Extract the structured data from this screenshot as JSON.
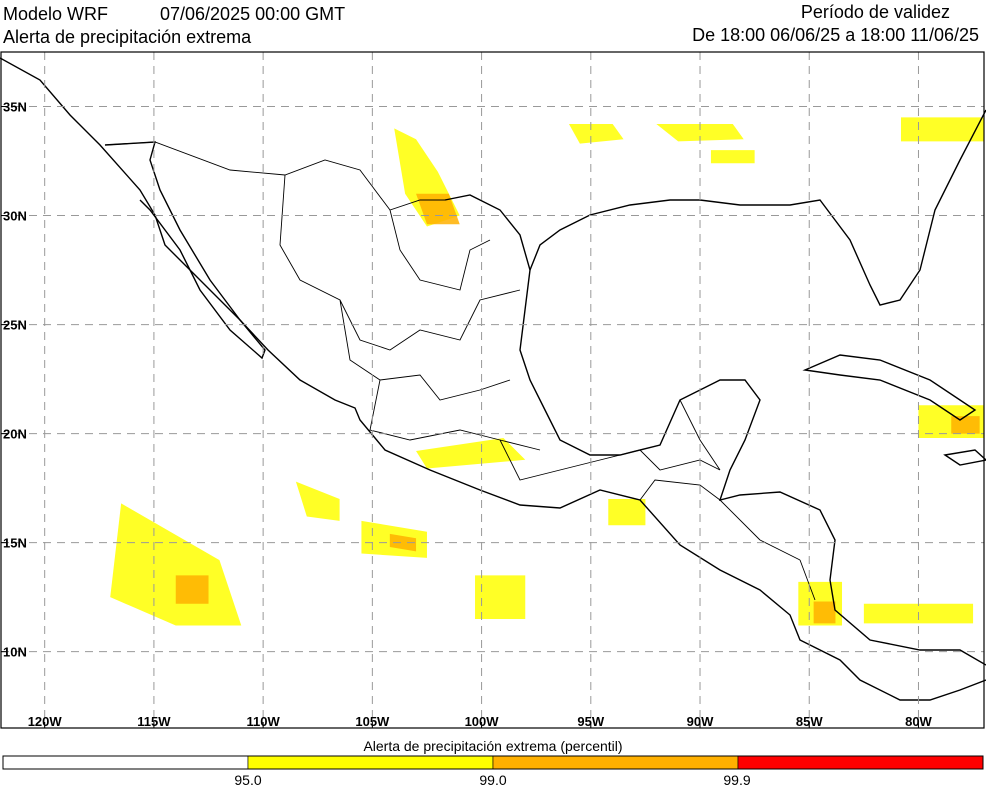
{
  "header": {
    "model": "Modelo WRF",
    "init_time": "07/06/2025 00:00 GMT",
    "product": "Alerta de precipitación extrema",
    "validity_title": "Período de validez",
    "validity_range": "De 18:00 06/06/25 a 18:00 11/06/25"
  },
  "map": {
    "lon_range": [
      -122,
      -77
    ],
    "lat_range": [
      6.5,
      37.5
    ],
    "lat_ticks": [
      {
        "value": 35,
        "label": "35N"
      },
      {
        "value": 30,
        "label": "30N"
      },
      {
        "value": 25,
        "label": "25N"
      },
      {
        "value": 20,
        "label": "20N"
      },
      {
        "value": 15,
        "label": "15N"
      },
      {
        "value": 10,
        "label": "10N"
      }
    ],
    "lon_ticks": [
      {
        "value": -120,
        "label": "120W"
      },
      {
        "value": -115,
        "label": "115W"
      },
      {
        "value": -110,
        "label": "110W"
      },
      {
        "value": -105,
        "label": "105W"
      },
      {
        "value": -100,
        "label": "100W"
      },
      {
        "value": -95,
        "label": "95W"
      },
      {
        "value": -90,
        "label": "90W"
      },
      {
        "value": -85,
        "label": "85W"
      },
      {
        "value": -80,
        "label": "80W"
      }
    ],
    "grid": "dashed",
    "coast_color": "#000000"
  },
  "alert_areas": [
    {
      "level": "p95",
      "lon": [
        -104,
        -103,
        -102,
        -101,
        -102.5,
        -103.5
      ],
      "lat": [
        34,
        33.5,
        32,
        30,
        29.5,
        31
      ]
    },
    {
      "level": "p99",
      "lon": [
        -103,
        -101.5,
        -101,
        -102.5
      ],
      "lat": [
        31,
        31,
        29.6,
        29.6
      ]
    },
    {
      "level": "p95",
      "lon": [
        -96,
        -94,
        -93.5,
        -95.5
      ],
      "lat": [
        34.2,
        34.2,
        33.5,
        33.3
      ]
    },
    {
      "level": "p95",
      "lon": [
        -92,
        -88.5,
        -88,
        -91
      ],
      "lat": [
        34.2,
        34.2,
        33.5,
        33.4
      ]
    },
    {
      "level": "p95",
      "lon": [
        -89.5,
        -87.5,
        -87.5,
        -89.5
      ],
      "lat": [
        33.0,
        33.0,
        32.4,
        32.4
      ]
    },
    {
      "level": "p95",
      "lon": [
        -80.8,
        -77,
        -77,
        -80.8
      ],
      "lat": [
        34.5,
        34.5,
        33.4,
        33.4
      ]
    },
    {
      "level": "p95",
      "lon": [
        -116.5,
        -112,
        -111,
        -114,
        -117
      ],
      "lat": [
        16.8,
        14.2,
        11.2,
        11.2,
        12.5
      ]
    },
    {
      "level": "p99",
      "lon": [
        -114,
        -112.5,
        -112.5,
        -114
      ],
      "lat": [
        13.5,
        13.5,
        12.2,
        12.2
      ]
    },
    {
      "level": "p95",
      "lon": [
        -108.5,
        -106.5,
        -106.5,
        -108
      ],
      "lat": [
        17.8,
        17.0,
        16.0,
        16.2
      ]
    },
    {
      "level": "p95",
      "lon": [
        -105.5,
        -102.5,
        -102.5,
        -105.5
      ],
      "lat": [
        16.0,
        15.5,
        14.3,
        14.5
      ]
    },
    {
      "level": "p99",
      "lon": [
        -104.2,
        -103,
        -103,
        -104.2
      ],
      "lat": [
        15.4,
        15.2,
        14.6,
        14.8
      ]
    },
    {
      "level": "p95",
      "lon": [
        -103,
        -99,
        -98,
        -102.5
      ],
      "lat": [
        19.2,
        19.8,
        18.8,
        18.4
      ]
    },
    {
      "level": "p95",
      "lon": [
        -100.3,
        -98,
        -98,
        -100.3
      ],
      "lat": [
        13.5,
        13.5,
        11.5,
        11.5
      ]
    },
    {
      "level": "p95",
      "lon": [
        -94.2,
        -92.5,
        -92.5,
        -94.2
      ],
      "lat": [
        17.0,
        17.0,
        15.8,
        15.8
      ]
    },
    {
      "level": "p95",
      "lon": [
        -85.5,
        -83.5,
        -83.5,
        -85.5
      ],
      "lat": [
        13.2,
        13.2,
        11.2,
        11.2
      ]
    },
    {
      "level": "p99",
      "lon": [
        -84.8,
        -83.8,
        -83.8,
        -84.8
      ],
      "lat": [
        12.3,
        12.3,
        11.3,
        11.3
      ]
    },
    {
      "level": "p95",
      "lon": [
        -82.5,
        -77.5,
        -77.5,
        -82.5
      ],
      "lat": [
        12.2,
        12.2,
        11.3,
        11.3
      ]
    },
    {
      "level": "p95",
      "lon": [
        -80,
        -77,
        -77,
        -80
      ],
      "lat": [
        21.3,
        21.3,
        19.8,
        19.8
      ]
    },
    {
      "level": "p99",
      "lon": [
        -78.5,
        -77.2,
        -77.2,
        -78.5
      ],
      "lat": [
        20.8,
        20.8,
        20.0,
        20.0
      ]
    }
  ],
  "colorbar": {
    "title": "Alerta de precipitación extrema (percentil)",
    "segments": [
      {
        "level": "below",
        "color": "#ffffff"
      },
      {
        "level": "p95",
        "color": "#ffff00"
      },
      {
        "level": "p99",
        "color": "#ffb000"
      },
      {
        "level": "p999",
        "color": "#ff0000"
      }
    ],
    "labels": [
      "95.0",
      "99.0",
      "99.9"
    ]
  }
}
